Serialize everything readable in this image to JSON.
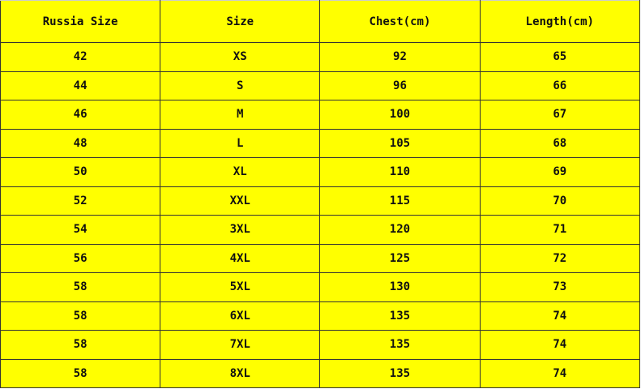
{
  "headers": [
    "Russia Size",
    "Size",
    "Chest(cm)",
    "Length(cm)"
  ],
  "rows": [
    [
      "42",
      "XS",
      "92",
      "65"
    ],
    [
      "44",
      "S",
      "96",
      "66"
    ],
    [
      "46",
      "M",
      "100",
      "67"
    ],
    [
      "48",
      "L",
      "105",
      "68"
    ],
    [
      "50",
      "XL",
      "110",
      "69"
    ],
    [
      "52",
      "XXL",
      "115",
      "70"
    ],
    [
      "54",
      "3XL",
      "120",
      "71"
    ],
    [
      "56",
      "4XL",
      "125",
      "72"
    ],
    [
      "58",
      "5XL",
      "130",
      "73"
    ],
    [
      "58",
      "6XL",
      "135",
      "74"
    ],
    [
      "58",
      "7XL",
      "135",
      "74"
    ],
    [
      "58",
      "8XL",
      "135",
      "74"
    ]
  ],
  "colors": {
    "background": "#ffff00",
    "border": "#333333"
  }
}
